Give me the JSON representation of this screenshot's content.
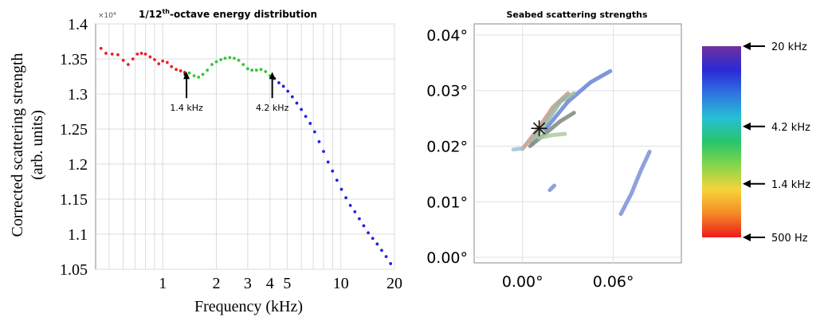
{
  "chart_data": [
    {
      "type": "scatter",
      "title": "1/12th-octave energy distribution",
      "title_main": "1/12",
      "title_sup": "th",
      "title_rest": "-octave energy distribution",
      "xlabel": "Frequency (kHz)",
      "ylabel_line1": "Corrected scattering strength",
      "ylabel_line2": "(arb. units)",
      "y_multiplier": "×10⁴",
      "x_scale": "log",
      "xlim": [
        0.42,
        20
      ],
      "ylim": [
        1.05,
        1.4
      ],
      "x_tick_labels": [
        "1",
        "2",
        "3",
        "4",
        "5",
        "10",
        "20"
      ],
      "x_ticks": [
        1,
        2,
        3,
        4,
        5,
        10,
        20
      ],
      "y_tick_labels": [
        "1.4",
        "1.35",
        "1.3",
        "1.25",
        "1.2",
        "1.15",
        "1.1",
        "1.05"
      ],
      "y_ticks": [
        1.4,
        1.35,
        1.3,
        1.25,
        1.2,
        1.15,
        1.1,
        1.05
      ],
      "grid": true,
      "series": [
        {
          "color": "#e8202a",
          "x": [
            0.45,
            0.48,
            0.52,
            0.56,
            0.6,
            0.64,
            0.68,
            0.72,
            0.76,
            0.8,
            0.85,
            0.9,
            0.95,
            1.0,
            1.06,
            1.12,
            1.19,
            1.26,
            1.33
          ],
          "y": [
            1.365,
            1.358,
            1.357,
            1.356,
            1.348,
            1.342,
            1.35,
            1.357,
            1.358,
            1.357,
            1.353,
            1.349,
            1.343,
            1.347,
            1.345,
            1.339,
            1.335,
            1.333,
            1.331
          ]
        },
        {
          "color": "#35c735",
          "x": [
            1.41,
            1.5,
            1.59,
            1.68,
            1.78,
            1.89,
            2.0,
            2.12,
            2.24,
            2.38,
            2.52,
            2.67,
            2.83,
            3.0,
            3.17,
            3.36,
            3.56,
            3.78,
            4.0
          ],
          "y": [
            1.33,
            1.326,
            1.324,
            1.328,
            1.334,
            1.342,
            1.346,
            1.349,
            1.351,
            1.352,
            1.351,
            1.348,
            1.342,
            1.336,
            1.334,
            1.334,
            1.335,
            1.332,
            1.326
          ]
        },
        {
          "color": "#2222e0",
          "x": [
            4.24,
            4.49,
            4.76,
            5.04,
            5.34,
            5.66,
            6.0,
            6.35,
            6.73,
            7.13,
            7.55,
            8.0,
            8.48,
            8.98,
            9.51,
            10.08,
            10.68,
            11.31,
            11.99,
            12.7,
            13.45,
            14.25,
            15.1,
            16.0,
            16.95,
            17.96,
            19.03
          ],
          "y": [
            1.322,
            1.316,
            1.311,
            1.304,
            1.296,
            1.287,
            1.278,
            1.268,
            1.258,
            1.246,
            1.232,
            1.218,
            1.203,
            1.19,
            1.177,
            1.164,
            1.152,
            1.141,
            1.132,
            1.122,
            1.112,
            1.102,
            1.094,
            1.086,
            1.077,
            1.068,
            1.058
          ]
        }
      ],
      "markers": [
        {
          "x": 1.34,
          "y": 1.328,
          "color": "#111111"
        },
        {
          "x": 4.12,
          "y": 1.324,
          "color": "#111111"
        }
      ],
      "annotations": [
        {
          "text": "1.4 kHz",
          "x": 1.36,
          "y": 1.31
        },
        {
          "text": "4.2 kHz",
          "x": 4.12,
          "y": 1.31
        }
      ]
    },
    {
      "type": "scatter",
      "title": "Seabed scattering strengths",
      "xlim": [
        -0.032,
        0.105
      ],
      "ylim": [
        -0.001,
        0.042
      ],
      "x_ticks": [
        0.0,
        0.06
      ],
      "x_tick_labels": [
        "0.00°",
        "0.06°"
      ],
      "y_ticks": [
        0.0,
        0.01,
        0.02,
        0.03,
        0.04
      ],
      "y_tick_labels": [
        "0.00°",
        "0.01°",
        "0.02°",
        "0.03°",
        "0.04°"
      ],
      "grid": true,
      "center_marker": {
        "x": 0.011,
        "y": 0.0232,
        "symbol": "asterisk"
      },
      "tracks": [
        {
          "color": "#6a84d4",
          "points": [
            [
              0.015,
              0.023
            ],
            [
              0.03,
              0.028
            ],
            [
              0.045,
              0.0315
            ],
            [
              0.058,
              0.0335
            ]
          ]
        },
        {
          "color": "#c49a8a",
          "points": [
            [
              0.0,
              0.0195
            ],
            [
              0.01,
              0.023
            ],
            [
              0.02,
              0.027
            ],
            [
              0.03,
              0.0295
            ]
          ]
        },
        {
          "color": "#8fb8a0",
          "points": [
            [
              0.006,
              0.0205
            ],
            [
              0.015,
              0.024
            ],
            [
              0.025,
              0.028
            ],
            [
              0.034,
              0.0295
            ]
          ]
        },
        {
          "color": "#7a8a80",
          "points": [
            [
              0.005,
              0.02
            ],
            [
              0.014,
              0.022
            ],
            [
              0.025,
              0.0245
            ],
            [
              0.034,
              0.026
            ]
          ]
        },
        {
          "color": "#b0c9a0",
          "points": [
            [
              0.011,
              0.0215
            ],
            [
              0.02,
              0.022
            ],
            [
              0.028,
              0.0222
            ]
          ]
        },
        {
          "color": "#9cc2d8",
          "points": [
            [
              -0.006,
              0.0194
            ],
            [
              0.0,
              0.0196
            ]
          ]
        },
        {
          "color": "#7a90d8",
          "points": [
            [
              0.065,
              0.0078
            ],
            [
              0.072,
              0.0115
            ],
            [
              0.078,
              0.0155
            ],
            [
              0.084,
              0.019
            ]
          ]
        },
        {
          "color": "#7a90d8",
          "points": [
            [
              0.018,
              0.0121
            ],
            [
              0.021,
              0.0129
            ]
          ]
        }
      ]
    },
    {
      "type": "colorbar",
      "stops": [
        "#ee1c1c",
        "#f58a24",
        "#f6d43a",
        "#86d64a",
        "#27c56b",
        "#27bfd4",
        "#2f76e0",
        "#2a2ad6",
        "#7030a0"
      ],
      "labels": [
        {
          "text": "20 kHz",
          "pos": 1.0
        },
        {
          "text": "4.2 kHz",
          "pos": 0.58
        },
        {
          "text": "1.4 kHz",
          "pos": 0.28
        },
        {
          "text": "500 Hz",
          "pos": 0.0
        }
      ]
    }
  ]
}
